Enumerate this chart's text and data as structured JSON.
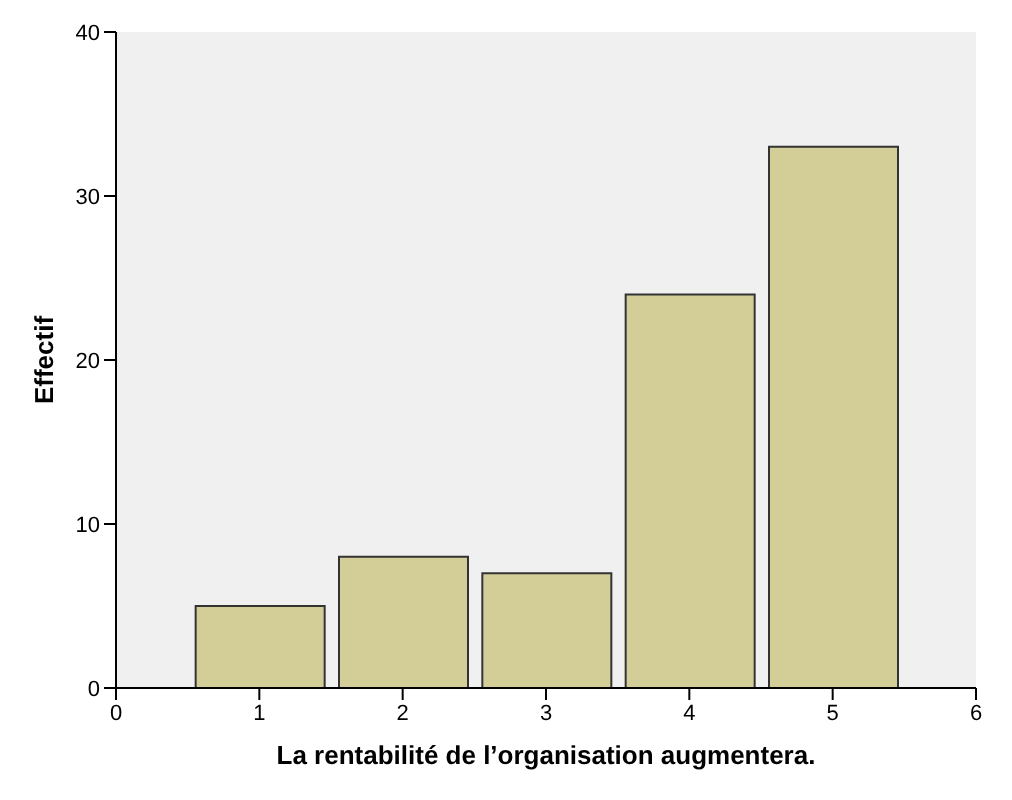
{
  "chart_data": {
    "type": "histogram",
    "xlabel": "La rentabilité de l’organisation augmentera.",
    "ylabel": "Effectif",
    "bins": [
      0.5,
      1.5,
      2.5,
      3.5,
      4.5,
      5.5
    ],
    "values": [
      5,
      8,
      7,
      24,
      33
    ],
    "color": "#d3ce97",
    "xlim": [
      0,
      6
    ],
    "xticks": [
      0,
      1,
      2,
      3,
      4,
      5,
      6
    ],
    "ylim": [
      0,
      40
    ],
    "yticks": [
      0,
      10,
      20,
      30,
      40
    ]
  }
}
